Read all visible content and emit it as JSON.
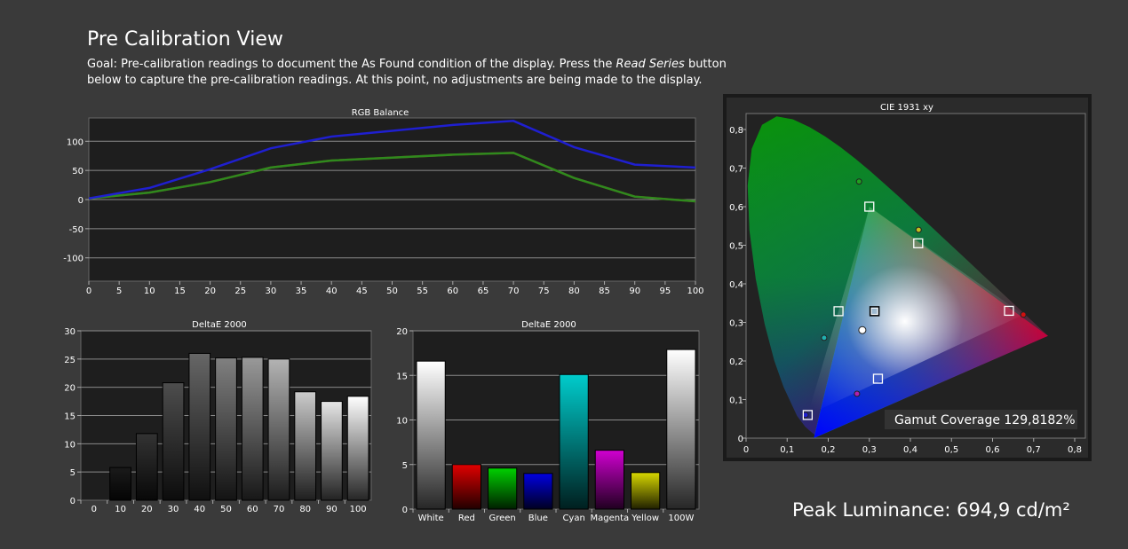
{
  "header": {
    "title": "Pre Calibration View",
    "goal_before": "Goal: Pre-calibration readings to document the As Found condition of the display. Press the ",
    "goal_italic": "Read Series",
    "goal_after": " button below to capture the pre-calibration readings. At this point, no adjustments are being made to the display."
  },
  "peak": {
    "text": "Peak Luminance: 694,9 cd/m²"
  },
  "colors": {
    "background": "#3a3a3a",
    "plot_bg": "#1e1e1e",
    "blue_line": "#1f1fd0",
    "green_line": "#2e8a1e",
    "red_line": "#8a2a10"
  },
  "chart_data": [
    {
      "type": "line",
      "title": "RGB Balance",
      "x": [
        0,
        10,
        20,
        30,
        40,
        50,
        60,
        70,
        80,
        90,
        100
      ],
      "xticks": [
        "0",
        "5",
        "10",
        "15",
        "20",
        "25",
        "30",
        "35",
        "40",
        "45",
        "50",
        "55",
        "60",
        "65",
        "70",
        "75",
        "80",
        "85",
        "90",
        "95",
        "100"
      ],
      "yticks": [
        "100",
        "50",
        "0",
        "-50",
        "-100"
      ],
      "xlim": [
        0,
        100
      ],
      "ylim": [
        -140,
        140
      ],
      "grid": true,
      "series": [
        {
          "color": "#1f1fd0",
          "values": [
            2,
            20,
            52,
            88,
            108,
            118,
            128,
            135,
            90,
            60,
            55
          ]
        },
        {
          "color": "#2e8a1e",
          "values": [
            2,
            12,
            30,
            55,
            67,
            72,
            77,
            80,
            37,
            5,
            -3
          ]
        },
        {
          "color": "#8a2a10",
          "values": [
            2,
            12,
            30,
            55,
            67,
            72,
            77,
            80,
            37,
            5,
            -3
          ]
        }
      ]
    },
    {
      "type": "bar",
      "title": "DeltaE 2000",
      "categories": [
        "0",
        "10",
        "20",
        "30",
        "40",
        "50",
        "60",
        "70",
        "80",
        "90",
        "100"
      ],
      "values": [
        0,
        5.8,
        11.8,
        20.8,
        26,
        25.2,
        25.3,
        25,
        19.2,
        17.5,
        18.4
      ],
      "yticks": [
        "30",
        "25",
        "20",
        "15",
        "10",
        "5",
        "0"
      ],
      "ylim": [
        0,
        30
      ]
    },
    {
      "type": "bar",
      "title": "DeltaE 2000",
      "categories": [
        "White",
        "Red",
        "Green",
        "Blue",
        "Cyan",
        "Magenta",
        "Yellow",
        "100W"
      ],
      "values": [
        16.6,
        5,
        4.6,
        4,
        15.1,
        6.6,
        4.1,
        17.9
      ],
      "colors": [
        "#ffffff",
        "#e00000",
        "#00d000",
        "#0000e0",
        "#00cccc",
        "#d000d0",
        "#d8d800",
        "#ffffff"
      ],
      "yticks": [
        "20",
        "15",
        "10",
        "5",
        "0"
      ],
      "ylim": [
        0,
        20
      ]
    },
    {
      "type": "scatter",
      "title": "CIE 1931 xy",
      "xticks": [
        "0",
        "0,1",
        "0,2",
        "0,3",
        "0,4",
        "0,5",
        "0,6",
        "0,7",
        "0,8"
      ],
      "yticks": [
        "0,8",
        "0,7",
        "0,6",
        "0,5",
        "0,4",
        "0,3",
        "0,2",
        "0,1",
        "0"
      ],
      "xlim": [
        0,
        0.8
      ],
      "ylim": [
        0,
        0.85
      ],
      "annotation": "Gamut Coverage 129,8182%",
      "target_gamut": {
        "red": [
          0.64,
          0.33
        ],
        "green": [
          0.3,
          0.6
        ],
        "blue": [
          0.15,
          0.06
        ]
      },
      "targets": [
        {
          "x": 0.64,
          "y": 0.33
        },
        {
          "x": 0.3,
          "y": 0.6
        },
        {
          "x": 0.15,
          "y": 0.06
        },
        {
          "x": 0.225,
          "y": 0.329
        },
        {
          "x": 0.321,
          "y": 0.154
        },
        {
          "x": 0.419,
          "y": 0.505
        },
        {
          "x": 0.3127,
          "y": 0.329
        }
      ],
      "measured": [
        {
          "x": 0.675,
          "y": 0.32,
          "color": "#d01010"
        },
        {
          "x": 0.275,
          "y": 0.665,
          "color": "#20a020"
        },
        {
          "x": 0.145,
          "y": 0.06,
          "color": "#2020d0"
        },
        {
          "x": 0.19,
          "y": 0.26,
          "color": "#20b0b0"
        },
        {
          "x": 0.27,
          "y": 0.115,
          "color": "#b020b0"
        },
        {
          "x": 0.42,
          "y": 0.54,
          "color": "#c0c020"
        },
        {
          "x": 0.283,
          "y": 0.28,
          "color": "#ffffff"
        }
      ]
    }
  ]
}
